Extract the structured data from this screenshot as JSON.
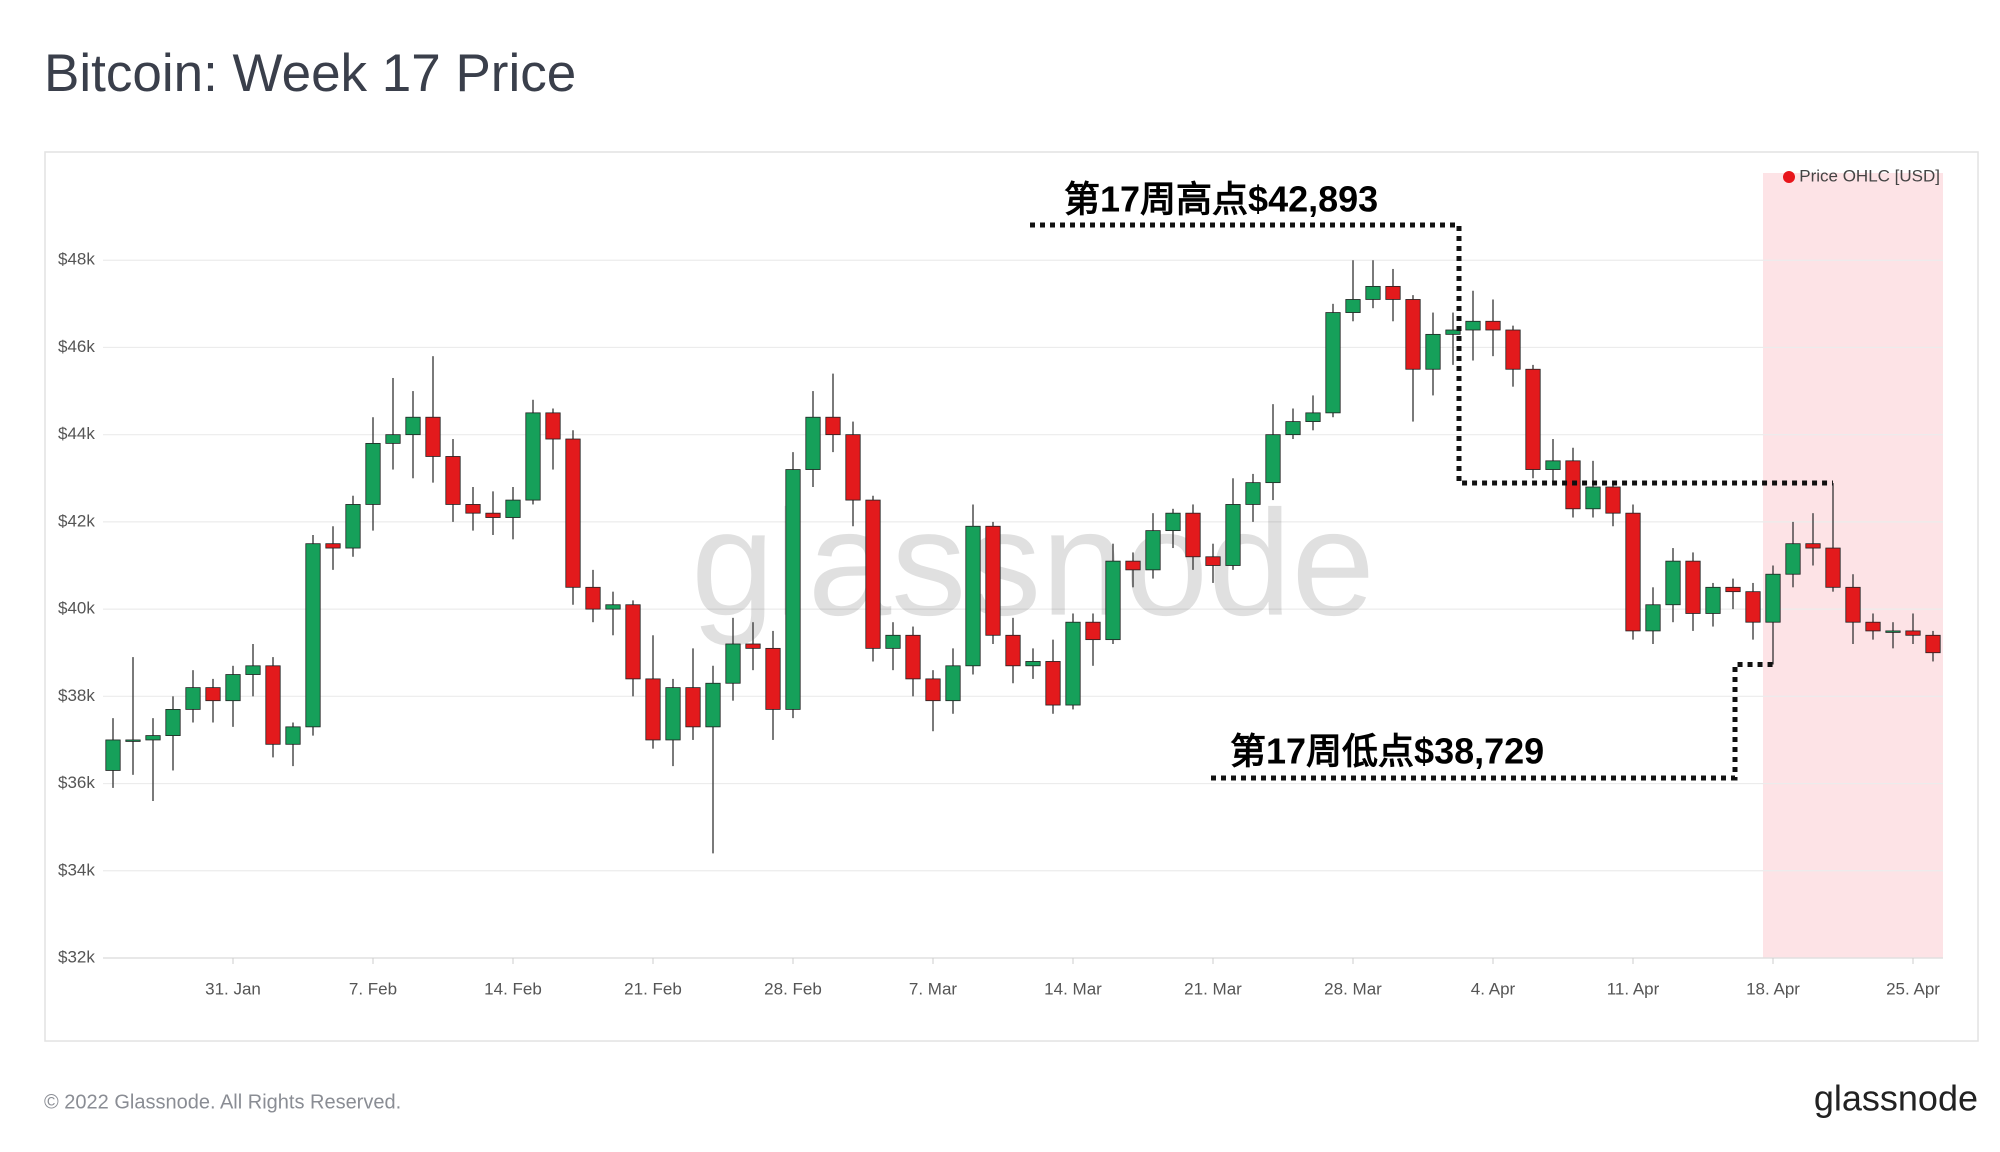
{
  "chart_data": {
    "type": "candlestick",
    "title": "Bitcoin: Week 17 Price",
    "legend": "Price OHLC [USD]",
    "legend_color": "#e8151b",
    "watermark": "glassnode",
    "footer": "© 2022 Glassnode. All Rights Reserved.",
    "logo": "glassnode",
    "up_color": "#16a05a",
    "down_color": "#e31a1c",
    "highlight_from": "18. Apr",
    "highlight_color": "#fde3e6",
    "grid": true,
    "categories": [
      null,
      null,
      null,
      null,
      null,
      null,
      "31. Jan",
      null,
      null,
      null,
      null,
      null,
      null,
      "7. Feb",
      null,
      null,
      null,
      null,
      null,
      null,
      "14. Feb",
      null,
      null,
      null,
      null,
      null,
      null,
      "21. Feb",
      null,
      null,
      null,
      null,
      null,
      null,
      "28. Feb",
      null,
      null,
      null,
      null,
      null,
      null,
      "7. Mar",
      null,
      null,
      null,
      null,
      null,
      null,
      "14. Mar",
      null,
      null,
      null,
      null,
      null,
      null,
      "21. Mar",
      null,
      null,
      null,
      null,
      null,
      null,
      "28. Mar",
      null,
      null,
      null,
      null,
      null,
      null,
      "4. Apr",
      null,
      null,
      null,
      null,
      null,
      null,
      "11. Apr",
      null,
      null,
      null,
      null,
      null,
      null,
      "18. Apr",
      null,
      null,
      null,
      null,
      null,
      null,
      "25. Apr",
      null
    ],
    "open": [
      36.3,
      37.0,
      37.0,
      37.1,
      37.7,
      38.2,
      37.9,
      38.5,
      38.7,
      36.9,
      37.3,
      41.5,
      41.4,
      42.4,
      43.8,
      44.0,
      44.4,
      43.5,
      42.4,
      42.2,
      42.1,
      42.5,
      44.5,
      43.9,
      40.5,
      40.0,
      40.1,
      38.4,
      37.0,
      38.2,
      37.3,
      38.3,
      39.2,
      39.1,
      37.7,
      43.2,
      44.4,
      44.0,
      42.5,
      39.1,
      39.4,
      38.4,
      37.9,
      38.7,
      41.9,
      39.4,
      38.7,
      38.8,
      37.8,
      39.7,
      39.3,
      41.1,
      40.9,
      41.8,
      42.2,
      41.2,
      41.0,
      42.4,
      42.9,
      44.0,
      44.3,
      44.5,
      46.8,
      47.1,
      47.4,
      47.1,
      45.5,
      46.3,
      46.4,
      46.6,
      46.4,
      45.5,
      43.2,
      43.4,
      42.3,
      42.8,
      42.2,
      39.5,
      40.1,
      41.1,
      39.9,
      40.5,
      40.4,
      39.7,
      40.8,
      41.5,
      41.4,
      40.5,
      39.7,
      39.5,
      39.5,
      39.4
    ],
    "high": [
      37.5,
      38.9,
      37.5,
      38.0,
      38.6,
      38.4,
      38.7,
      39.2,
      38.9,
      37.4,
      41.7,
      41.9,
      42.6,
      44.4,
      45.3,
      45.0,
      45.8,
      43.9,
      42.8,
      42.7,
      42.8,
      44.8,
      44.6,
      44.1,
      40.9,
      40.4,
      40.2,
      39.4,
      38.4,
      39.1,
      38.7,
      39.8,
      39.7,
      39.5,
      43.6,
      45.0,
      45.4,
      44.3,
      42.6,
      39.7,
      39.6,
      38.6,
      39.1,
      42.4,
      42.0,
      39.8,
      39.1,
      39.3,
      39.9,
      39.9,
      41.5,
      41.3,
      42.2,
      42.3,
      42.4,
      41.5,
      43.0,
      43.1,
      44.7,
      44.6,
      44.9,
      47.0,
      48.0,
      48.0,
      47.8,
      47.2,
      46.8,
      46.8,
      47.3,
      47.1,
      46.5,
      45.6,
      43.9,
      43.7,
      43.4,
      42.9,
      42.4,
      40.5,
      41.4,
      41.3,
      40.6,
      40.7,
      40.6,
      41.0,
      42.0,
      42.2,
      42.89,
      40.8,
      39.9,
      39.7,
      39.9,
      39.5
    ],
    "low": [
      35.9,
      36.2,
      35.6,
      36.3,
      37.4,
      37.4,
      37.3,
      38.0,
      36.6,
      36.4,
      37.1,
      40.9,
      41.2,
      41.8,
      43.2,
      43.0,
      42.9,
      42.0,
      41.8,
      41.7,
      41.6,
      42.4,
      43.2,
      40.1,
      39.7,
      39.4,
      38.0,
      36.8,
      36.4,
      37.0,
      34.4,
      37.9,
      38.6,
      37.0,
      37.5,
      42.8,
      43.6,
      41.9,
      38.8,
      38.6,
      38.0,
      37.2,
      37.6,
      38.5,
      39.2,
      38.3,
      38.4,
      37.6,
      37.7,
      38.7,
      39.2,
      40.5,
      40.7,
      41.4,
      40.9,
      40.6,
      40.9,
      42.0,
      42.5,
      43.9,
      44.1,
      44.4,
      46.6,
      46.9,
      46.6,
      44.3,
      44.9,
      45.6,
      45.7,
      45.8,
      45.1,
      43.0,
      42.9,
      42.1,
      42.1,
      41.9,
      39.3,
      39.2,
      39.7,
      39.5,
      39.6,
      40.0,
      39.3,
      38.73,
      40.5,
      41.0,
      40.4,
      39.2,
      39.3,
      39.1,
      39.2,
      38.8
    ],
    "close": [
      37.0,
      37.0,
      37.1,
      37.7,
      38.2,
      37.9,
      38.5,
      38.7,
      36.9,
      37.3,
      41.5,
      41.4,
      42.4,
      43.8,
      44.0,
      44.4,
      43.5,
      42.4,
      42.2,
      42.1,
      42.5,
      44.5,
      43.9,
      40.5,
      40.0,
      40.1,
      38.4,
      37.0,
      38.2,
      37.3,
      38.3,
      39.2,
      39.1,
      37.7,
      43.2,
      44.4,
      44.0,
      42.5,
      39.1,
      39.4,
      38.4,
      37.9,
      38.7,
      41.9,
      39.4,
      38.7,
      38.8,
      37.8,
      39.7,
      39.3,
      41.1,
      40.9,
      41.8,
      42.2,
      41.2,
      41.0,
      42.4,
      42.9,
      44.0,
      44.3,
      44.5,
      46.8,
      47.1,
      47.4,
      47.1,
      45.5,
      46.3,
      46.4,
      46.6,
      46.4,
      45.5,
      43.2,
      43.4,
      42.3,
      42.8,
      42.2,
      39.5,
      40.1,
      41.1,
      39.9,
      40.5,
      40.4,
      39.7,
      40.8,
      41.5,
      41.4,
      40.5,
      39.7,
      39.5,
      39.5,
      39.4,
      39.0
    ],
    "ylim": [
      32,
      50
    ],
    "yticks": [
      {
        "value": 32,
        "label": "$32k"
      },
      {
        "value": 34,
        "label": "$34k"
      },
      {
        "value": 36,
        "label": "$36k"
      },
      {
        "value": 38,
        "label": "$38k"
      },
      {
        "value": 40,
        "label": "$40k"
      },
      {
        "value": 42,
        "label": "$42k"
      },
      {
        "value": 44,
        "label": "$44k"
      },
      {
        "value": 46,
        "label": "$46k"
      },
      {
        "value": 48,
        "label": "$48k"
      }
    ],
    "annotations": [
      {
        "text": "第17周高点$42,893",
        "value": 42.893
      },
      {
        "text": "第17周低点$38,729",
        "value": 38.729
      }
    ]
  }
}
